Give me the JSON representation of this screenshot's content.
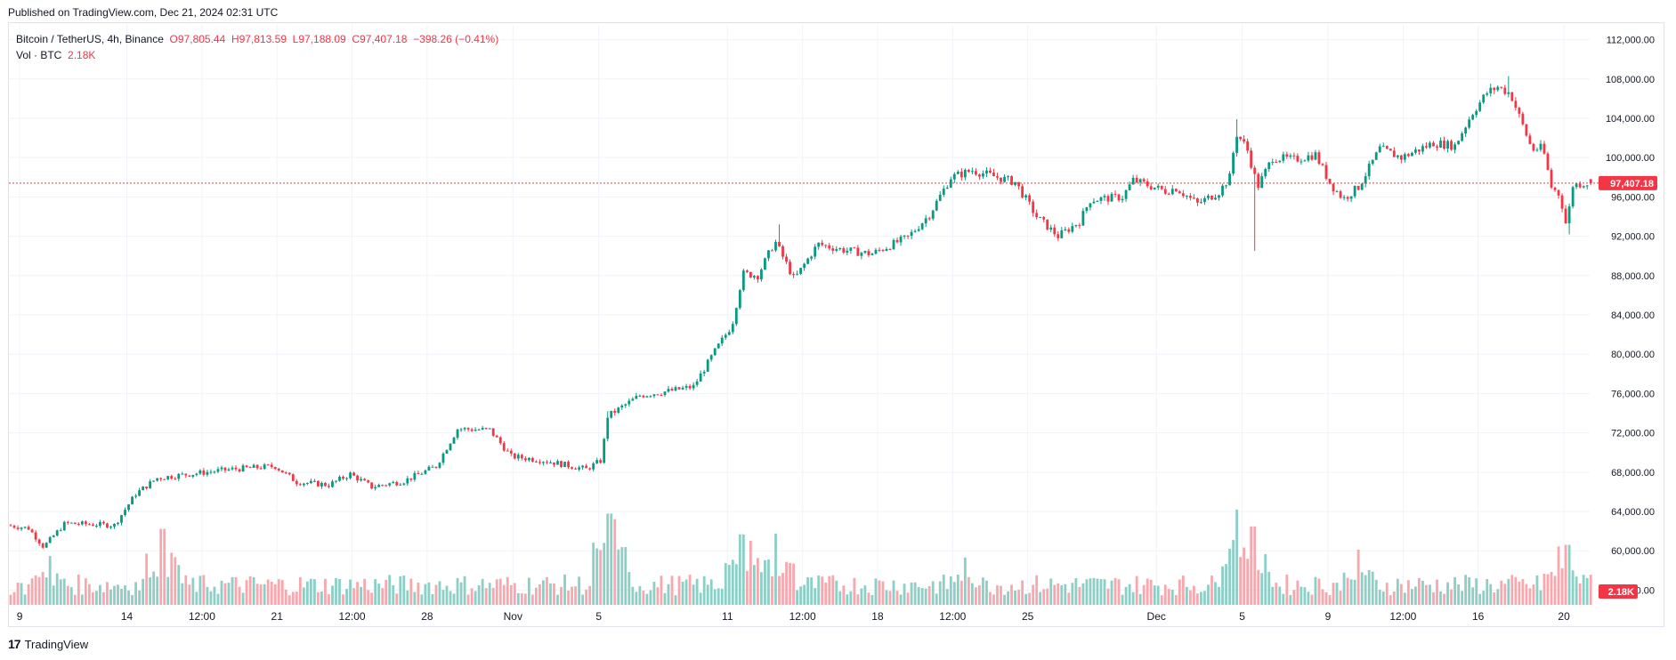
{
  "header": {
    "published_text": "Published on TradingView.com, Dec 21, 2024 02:31 UTC"
  },
  "legend": {
    "symbol": "Bitcoin / TetherUS, 4h, Binance",
    "open": "O97,805.44",
    "high": "H97,813.59",
    "low": "L97,188.09",
    "close": "C97,407.18",
    "change": "−398.26 (−0.41%)",
    "vol_label": "Vol · BTC",
    "vol_value": "2.18K"
  },
  "footer": {
    "brand": "TradingView",
    "logo_glyph": "17"
  },
  "colors": {
    "up": "#089981",
    "down": "#f23645",
    "vol_up": "#8ccfc6",
    "vol_down": "#f7a8ae",
    "grid": "#f0f3fa",
    "text": "#131722",
    "price_tag": "#f23645"
  },
  "chart_data": {
    "type": "candlestick",
    "timeframe": "4h",
    "y_axis": {
      "ticks": [
        56000,
        60000,
        64000,
        68000,
        72000,
        76000,
        80000,
        84000,
        88000,
        92000,
        96000,
        100000,
        104000,
        108000,
        112000
      ],
      "tick_labels": [
        "56,000.00",
        "60,000.00",
        "64,000.00",
        "68,000.00",
        "72,000.00",
        "76,000.00",
        "80,000.00",
        "84,000.00",
        "88,000.00",
        "92,000.00",
        "96,000.00",
        "100,000.00",
        "104,000.00",
        "108,000.00",
        "112,000.00"
      ],
      "ylim": [
        54500,
        113500
      ]
    },
    "x_axis": {
      "ticks": [
        {
          "label": "9",
          "day": 9
        },
        {
          "label": "14",
          "day": 14
        },
        {
          "label": "12:00",
          "day": 17.5
        },
        {
          "label": "21",
          "day": 21
        },
        {
          "label": "12:00",
          "day": 24.5
        },
        {
          "label": "28",
          "day": 28
        },
        {
          "label": "Nov",
          "day": 32
        },
        {
          "label": "5",
          "day": 36
        },
        {
          "label": "11",
          "day": 42
        },
        {
          "label": "12:00",
          "day": 45.5
        },
        {
          "label": "18",
          "day": 49
        },
        {
          "label": "12:00",
          "day": 52.5
        },
        {
          "label": "25",
          "day": 56
        },
        {
          "label": "Dec",
          "day": 62
        },
        {
          "label": "5",
          "day": 66
        },
        {
          "label": "9",
          "day": 70
        },
        {
          "label": "12:00",
          "day": 73.5
        },
        {
          "label": "16",
          "day": 77
        },
        {
          "label": "20",
          "day": 81
        }
      ],
      "start_day": 8.5,
      "end_day": 82.2
    },
    "price_anchors": [
      {
        "day": 8.5,
        "price": 62600
      },
      {
        "day": 9.5,
        "price": 62300
      },
      {
        "day": 10.2,
        "price": 60400
      },
      {
        "day": 11.2,
        "price": 62800
      },
      {
        "day": 13.5,
        "price": 62600
      },
      {
        "day": 14.5,
        "price": 65800
      },
      {
        "day": 15.5,
        "price": 67400
      },
      {
        "day": 17.0,
        "price": 67800
      },
      {
        "day": 19.0,
        "price": 68300
      },
      {
        "day": 21.0,
        "price": 68600
      },
      {
        "day": 22.0,
        "price": 67000
      },
      {
        "day": 23.5,
        "price": 66700
      },
      {
        "day": 24.5,
        "price": 67800
      },
      {
        "day": 25.5,
        "price": 66500
      },
      {
        "day": 27.0,
        "price": 67100
      },
      {
        "day": 28.5,
        "price": 68600
      },
      {
        "day": 29.5,
        "price": 72400
      },
      {
        "day": 31.0,
        "price": 72300
      },
      {
        "day": 32.0,
        "price": 69600
      },
      {
        "day": 33.5,
        "price": 69200
      },
      {
        "day": 35.5,
        "price": 68300
      },
      {
        "day": 36.2,
        "price": 69200
      },
      {
        "day": 36.5,
        "price": 73700
      },
      {
        "day": 38.0,
        "price": 75800
      },
      {
        "day": 39.5,
        "price": 76300
      },
      {
        "day": 40.5,
        "price": 76700
      },
      {
        "day": 41.5,
        "price": 80300
      },
      {
        "day": 42.3,
        "price": 83000
      },
      {
        "day": 42.8,
        "price": 88200
      },
      {
        "day": 43.5,
        "price": 88000
      },
      {
        "day": 44.3,
        "price": 91500
      },
      {
        "day": 45.2,
        "price": 87600
      },
      {
        "day": 46.3,
        "price": 91200
      },
      {
        "day": 47.5,
        "price": 90600
      },
      {
        "day": 48.8,
        "price": 90200
      },
      {
        "day": 50.5,
        "price": 91900
      },
      {
        "day": 51.5,
        "price": 94200
      },
      {
        "day": 52.5,
        "price": 98000
      },
      {
        "day": 53.5,
        "price": 98700
      },
      {
        "day": 55.5,
        "price": 97500
      },
      {
        "day": 56.5,
        "price": 94000
      },
      {
        "day": 57.5,
        "price": 92000
      },
      {
        "day": 58.5,
        "price": 93500
      },
      {
        "day": 59.0,
        "price": 95700
      },
      {
        "day": 60.5,
        "price": 96000
      },
      {
        "day": 61.0,
        "price": 97700
      },
      {
        "day": 62.5,
        "price": 96600
      },
      {
        "day": 63.0,
        "price": 96900
      },
      {
        "day": 64.0,
        "price": 95300
      },
      {
        "day": 65.0,
        "price": 96500
      },
      {
        "day": 65.5,
        "price": 98000
      },
      {
        "day": 65.8,
        "price": 102500
      },
      {
        "day": 66.3,
        "price": 101000
      },
      {
        "day": 66.8,
        "price": 97000
      },
      {
        "day": 67.5,
        "price": 100000
      },
      {
        "day": 68.5,
        "price": 99800
      },
      {
        "day": 69.5,
        "price": 100300
      },
      {
        "day": 70.2,
        "price": 97300
      },
      {
        "day": 70.8,
        "price": 95800
      },
      {
        "day": 71.5,
        "price": 97000
      },
      {
        "day": 72.5,
        "price": 100900
      },
      {
        "day": 73.5,
        "price": 100000
      },
      {
        "day": 75.0,
        "price": 101500
      },
      {
        "day": 76.0,
        "price": 101200
      },
      {
        "day": 76.8,
        "price": 104500
      },
      {
        "day": 77.5,
        "price": 106600
      },
      {
        "day": 78.0,
        "price": 107200
      },
      {
        "day": 78.6,
        "price": 106500
      },
      {
        "day": 79.0,
        "price": 104200
      },
      {
        "day": 79.6,
        "price": 100800
      },
      {
        "day": 80.1,
        "price": 101000
      },
      {
        "day": 80.5,
        "price": 97000
      },
      {
        "day": 80.9,
        "price": 96200
      },
      {
        "day": 81.2,
        "price": 93000
      },
      {
        "day": 81.5,
        "price": 97200
      },
      {
        "day": 82.0,
        "price": 97407
      }
    ],
    "spikes": [
      {
        "day": 65.6,
        "high": 103900
      },
      {
        "day": 66.55,
        "low": 90500
      },
      {
        "day": 78.3,
        "high": 108300
      },
      {
        "day": 81.2,
        "low": 92200
      },
      {
        "day": 44.35,
        "high": 93200
      },
      {
        "day": 36.3,
        "high": 74200
      }
    ],
    "current_price": 97407.18,
    "current_price_label": "97,407.18",
    "current_volume_label": "2.18K",
    "volume_scale_max": 2000,
    "volume_peaks": [
      {
        "day": 10.3,
        "vol": 610
      },
      {
        "day": 15.6,
        "vol": 950
      },
      {
        "day": 36.4,
        "vol": 1140
      },
      {
        "day": 36.6,
        "vol": 1070
      },
      {
        "day": 42.6,
        "vol": 880
      },
      {
        "day": 43.0,
        "vol": 800
      },
      {
        "day": 44.2,
        "vol": 890
      },
      {
        "day": 53.0,
        "vol": 590
      },
      {
        "day": 65.7,
        "vol": 1190
      },
      {
        "day": 66.4,
        "vol": 980
      },
      {
        "day": 65.5,
        "vol": 640
      },
      {
        "day": 71.3,
        "vol": 690
      },
      {
        "day": 80.7,
        "vol": 730
      },
      {
        "day": 81.1,
        "vol": 750
      }
    ]
  }
}
